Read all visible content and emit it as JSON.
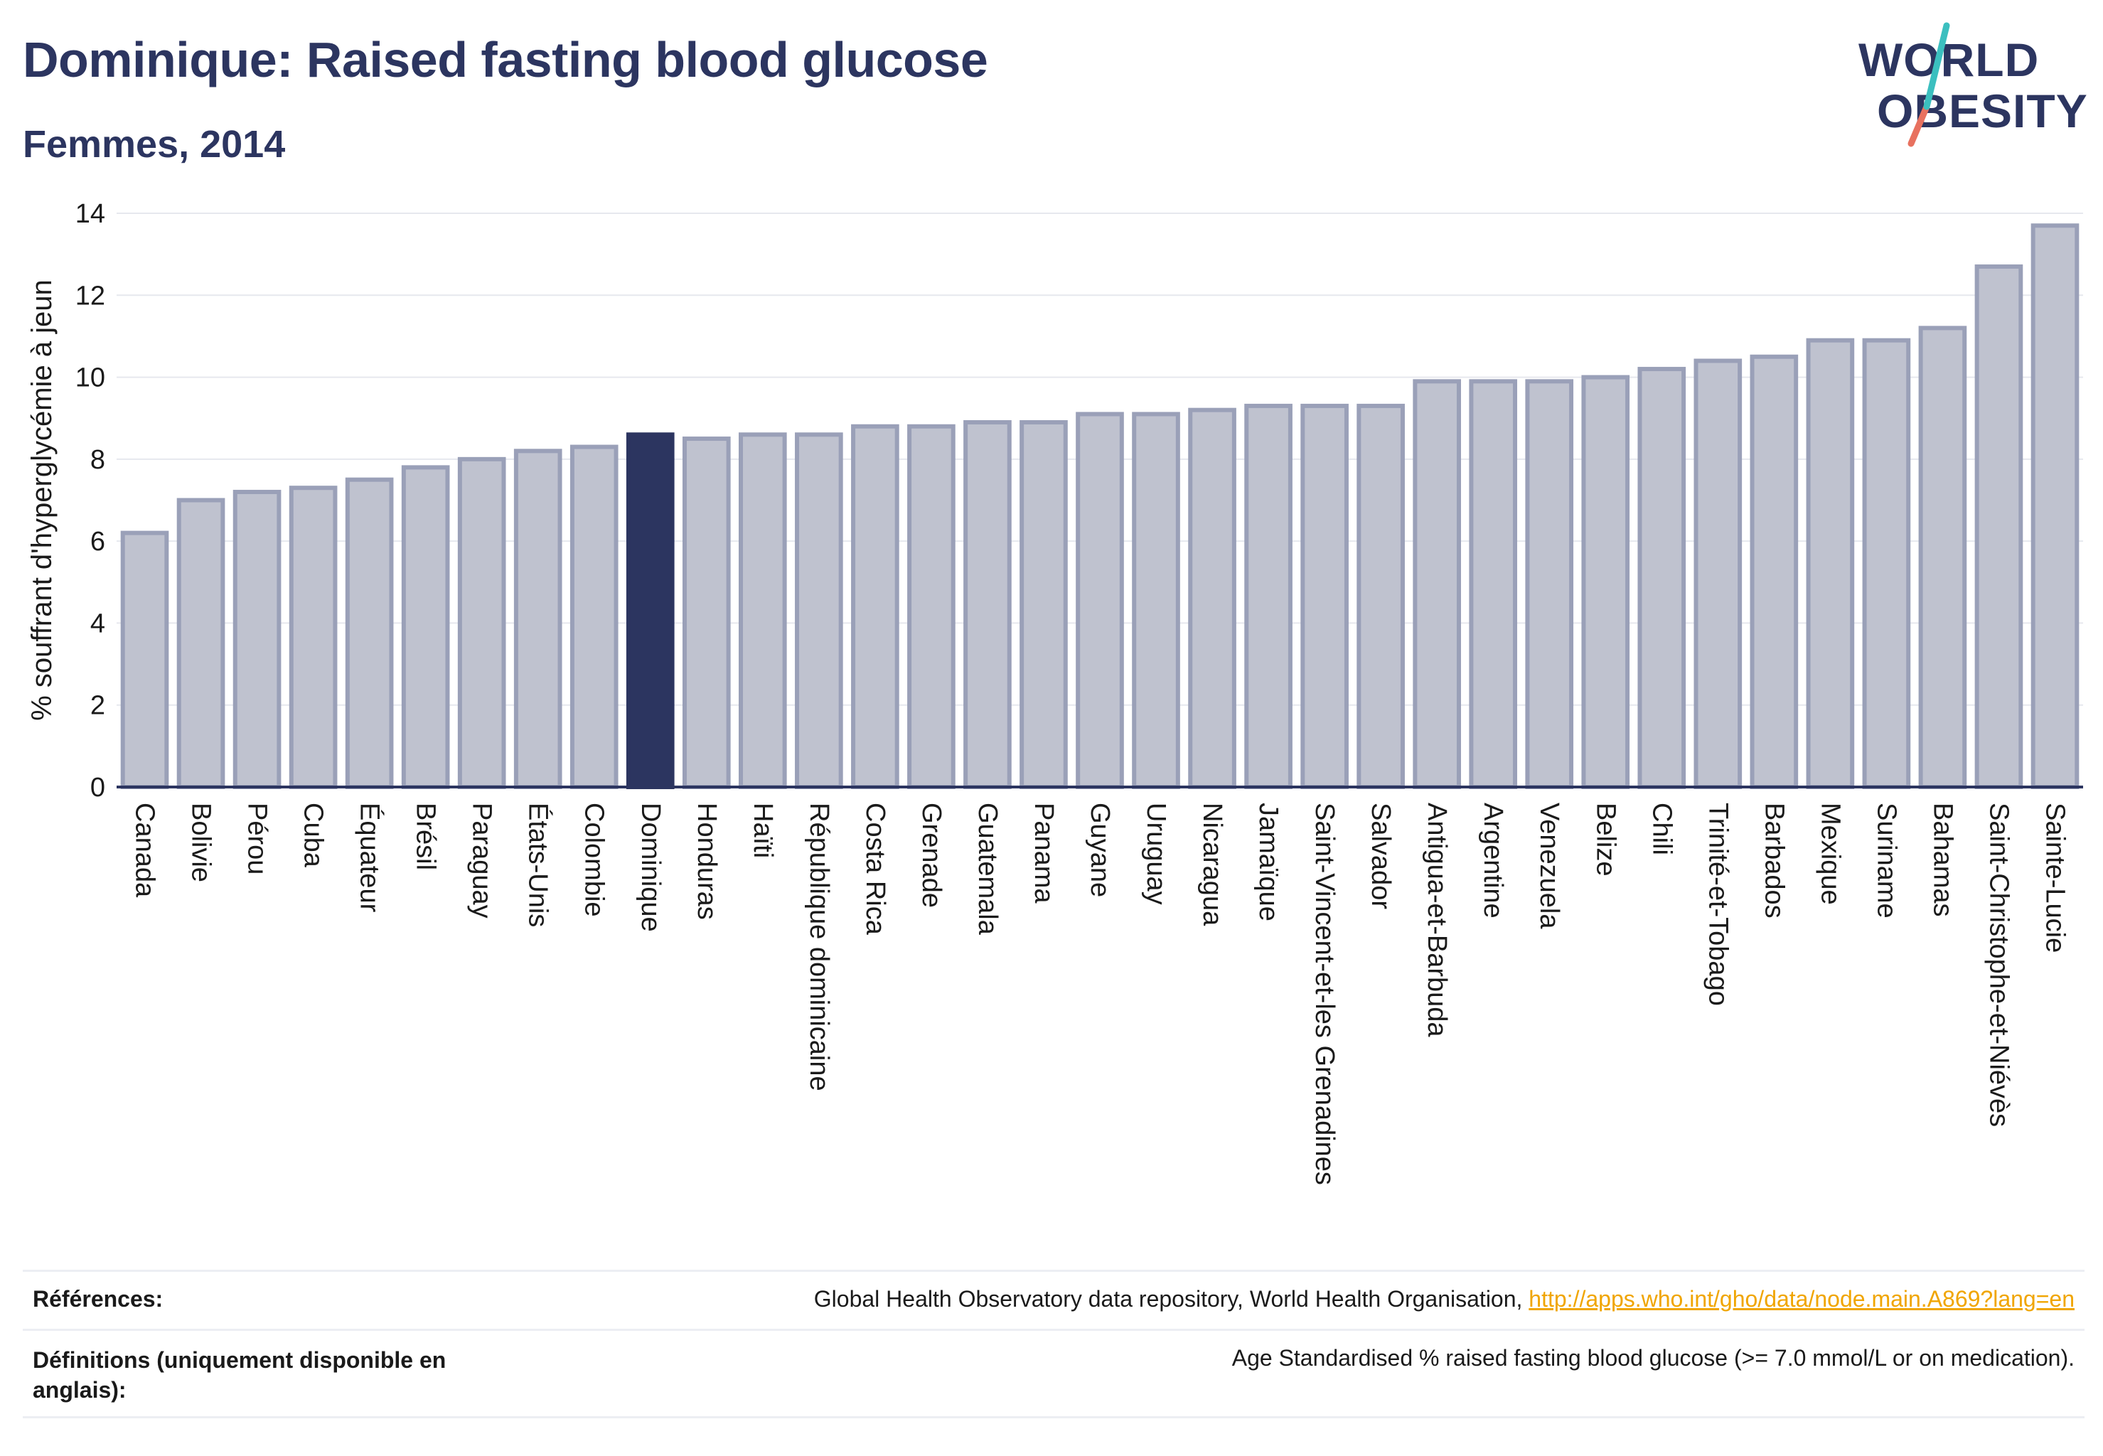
{
  "header": {
    "title": "Dominique: Raised fasting blood glucose",
    "subtitle": "Femmes, 2014"
  },
  "logo": {
    "line1": "WORLD",
    "line2": "OBESITY",
    "colors": {
      "navy": "#2c3560",
      "teal": "#3bbfbf",
      "coral": "#e8715f"
    }
  },
  "chart_data": {
    "type": "bar",
    "title": "Dominique: Raised fasting blood glucose",
    "subtitle": "Femmes, 2014",
    "xlabel": "",
    "ylabel": "% souffrant d'hyperglycémie à jeun",
    "ylim": [
      0,
      14
    ],
    "yticks": [
      0,
      2,
      4,
      6,
      8,
      10,
      12,
      14
    ],
    "grid": true,
    "highlight_category": "Dominique",
    "colors": {
      "bar": "#bfc2cf",
      "bar_border": "#9aa0b8",
      "highlight": "#2c3560",
      "grid": "#e6e8ee",
      "axis": "#2c3560"
    },
    "categories": [
      "Canada",
      "Bolivie",
      "Pérou",
      "Cuba",
      "Équateur",
      "Brésil",
      "Paraguay",
      "États-Unis",
      "Colombie",
      "Dominique",
      "Honduras",
      "Haïti",
      "République dominicaine",
      "Costa Rica",
      "Grenade",
      "Guatemala",
      "Panama",
      "Guyane",
      "Uruguay",
      "Nicaragua",
      "Jamaïque",
      "Saint-Vincent-et-les Grenadines",
      "Salvador",
      "Antigua-et-Barbuda",
      "Argentine",
      "Venezuela",
      "Belize",
      "Chili",
      "Trinité-et-Tobago",
      "Barbados",
      "Mexique",
      "Suriname",
      "Bahamas",
      "Saint-Christophe-et-Niévès",
      "Sainte-Lucie"
    ],
    "values": [
      6.2,
      7.0,
      7.2,
      7.3,
      7.5,
      7.8,
      8.0,
      8.2,
      8.3,
      8.6,
      8.5,
      8.6,
      8.6,
      8.8,
      8.8,
      8.9,
      8.9,
      9.1,
      9.1,
      9.2,
      9.3,
      9.3,
      9.3,
      9.9,
      9.9,
      9.9,
      10.0,
      10.2,
      10.4,
      10.5,
      10.9,
      10.9,
      11.2,
      12.7,
      13.7
    ]
  },
  "references": {
    "sources_label": "Références:",
    "sources_text": "Global Health Observatory data repository, World Health Organisation, ",
    "sources_link": "http://apps.who.int/gho/data/node.main.A869?lang=en",
    "definitions_label": "Définitions (uniquement disponible en anglais):",
    "definitions_text": "Age Standardised % raised fasting blood glucose (>= 7.0 mmol/L or on medication)."
  }
}
